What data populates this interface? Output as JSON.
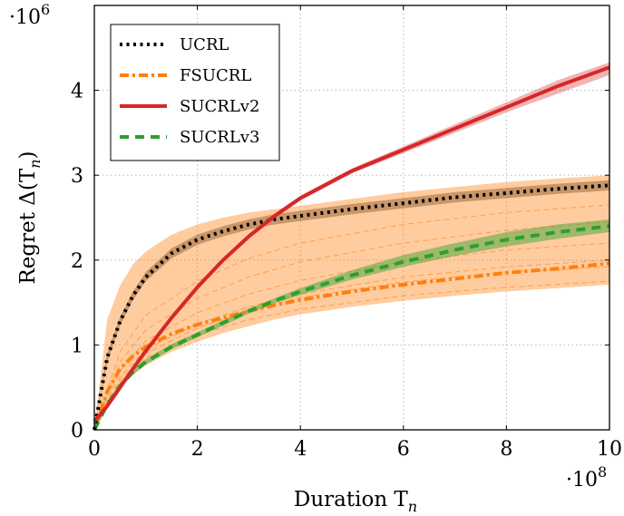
{
  "chart_data": {
    "type": "line",
    "title": "",
    "xlabel": "Duration T_n",
    "ylabel": "Regret Δ(T_n)",
    "x_multiplier": "·10^8",
    "y_multiplier": "·10^6",
    "xlim": [
      0,
      10
    ],
    "ylim": [
      0,
      5
    ],
    "x_ticks": [
      0,
      2,
      4,
      6,
      8,
      10
    ],
    "y_ticks": [
      0,
      1,
      2,
      3,
      4
    ],
    "grid": true,
    "legend_position": "top-left",
    "series": [
      {
        "name": "UCRL",
        "color": "#000000",
        "style": "dotted",
        "x": [
          0,
          0.25,
          0.5,
          0.75,
          1,
          1.5,
          2,
          2.5,
          3,
          3.5,
          4,
          5,
          6,
          7,
          8,
          9,
          10
        ],
        "y": [
          0,
          0.85,
          1.28,
          1.58,
          1.8,
          2.08,
          2.24,
          2.34,
          2.42,
          2.48,
          2.52,
          2.6,
          2.67,
          2.74,
          2.79,
          2.84,
          2.88
        ],
        "band": [
          [
            0,
            0.9,
            1.33,
            1.63,
            1.86,
            2.14,
            2.3,
            2.4,
            2.48,
            2.54,
            2.58,
            2.66,
            2.73,
            2.8,
            2.85,
            2.9,
            2.94
          ],
          [
            0,
            0.8,
            1.23,
            1.53,
            1.75,
            2.02,
            2.18,
            2.28,
            2.36,
            2.42,
            2.46,
            2.54,
            2.61,
            2.68,
            2.73,
            2.78,
            2.82
          ]
        ]
      },
      {
        "name": "FSUCRL",
        "color": "#ff7f0e",
        "style": "dash-dot",
        "x": [
          0,
          0.25,
          0.5,
          0.75,
          1,
          1.5,
          2,
          2.5,
          3,
          3.5,
          4,
          5,
          6,
          7,
          8,
          9,
          10
        ],
        "y": [
          0,
          0.45,
          0.72,
          0.87,
          0.98,
          1.13,
          1.24,
          1.32,
          1.4,
          1.47,
          1.53,
          1.63,
          1.71,
          1.78,
          1.85,
          1.9,
          1.96
        ],
        "band": [
          [
            0,
            1.3,
            1.7,
            1.95,
            2.1,
            2.3,
            2.42,
            2.5,
            2.56,
            2.6,
            2.64,
            2.72,
            2.8,
            2.86,
            2.92,
            2.96,
            3.0
          ],
          [
            0,
            0.25,
            0.5,
            0.65,
            0.76,
            0.92,
            1.04,
            1.14,
            1.22,
            1.3,
            1.36,
            1.45,
            1.52,
            1.58,
            1.63,
            1.67,
            1.71
          ]
        ]
      },
      {
        "name": "SUCRLv2",
        "color": "#d62728",
        "style": "solid",
        "x": [
          0,
          0.25,
          0.5,
          0.75,
          1,
          1.5,
          2,
          2.5,
          3,
          3.5,
          4,
          5,
          6,
          7,
          8,
          9,
          10
        ],
        "y": [
          0.1,
          0.28,
          0.5,
          0.72,
          0.93,
          1.32,
          1.68,
          2.0,
          2.28,
          2.52,
          2.73,
          3.05,
          3.3,
          3.55,
          3.8,
          4.05,
          4.27
        ],
        "band": [
          [
            0.12,
            0.31,
            0.53,
            0.75,
            0.96,
            1.35,
            1.71,
            2.03,
            2.31,
            2.55,
            2.76,
            3.08,
            3.34,
            3.6,
            3.86,
            4.12,
            4.33
          ],
          [
            0.08,
            0.25,
            0.47,
            0.69,
            0.9,
            1.29,
            1.65,
            1.97,
            2.25,
            2.49,
            2.7,
            3.02,
            3.26,
            3.5,
            3.74,
            3.96,
            4.18
          ]
        ]
      },
      {
        "name": "SUCRLv3",
        "color": "#2ca02c",
        "style": "dashed",
        "x": [
          0,
          0.25,
          0.5,
          0.75,
          1,
          1.5,
          2,
          2.5,
          3,
          3.5,
          4,
          5,
          6,
          7,
          8,
          9,
          10
        ],
        "y": [
          0,
          0.3,
          0.52,
          0.68,
          0.8,
          0.98,
          1.12,
          1.26,
          1.4,
          1.52,
          1.63,
          1.82,
          1.98,
          2.12,
          2.24,
          2.33,
          2.4
        ],
        "band": [
          [
            0,
            0.33,
            0.55,
            0.71,
            0.83,
            1.01,
            1.15,
            1.29,
            1.43,
            1.55,
            1.67,
            1.88,
            2.06,
            2.2,
            2.33,
            2.42,
            2.48
          ],
          [
            0,
            0.27,
            0.49,
            0.65,
            0.77,
            0.95,
            1.09,
            1.23,
            1.37,
            1.49,
            1.59,
            1.77,
            1.92,
            2.05,
            2.16,
            2.25,
            2.33
          ]
        ]
      }
    ],
    "faint_runs": {
      "color": "#ff7f0e",
      "x": [
        0,
        0.5,
        1,
        2,
        3,
        4,
        6,
        8,
        10
      ],
      "runs": [
        [
          0,
          0.55,
          0.85,
          1.12,
          1.3,
          1.42,
          1.58,
          1.68,
          1.75
        ],
        [
          0,
          0.62,
          0.95,
          1.25,
          1.45,
          1.6,
          1.8,
          1.92,
          2.0
        ],
        [
          0,
          0.7,
          1.05,
          1.38,
          1.6,
          1.76,
          1.98,
          2.12,
          2.2
        ],
        [
          0,
          0.8,
          1.18,
          1.55,
          1.8,
          1.98,
          2.2,
          2.35,
          2.45
        ],
        [
          0,
          0.92,
          1.35,
          1.75,
          2.02,
          2.2,
          2.42,
          2.56,
          2.65
        ],
        [
          0,
          0.58,
          0.9,
          1.2,
          1.4,
          1.56,
          1.74,
          1.86,
          1.92
        ]
      ]
    }
  }
}
